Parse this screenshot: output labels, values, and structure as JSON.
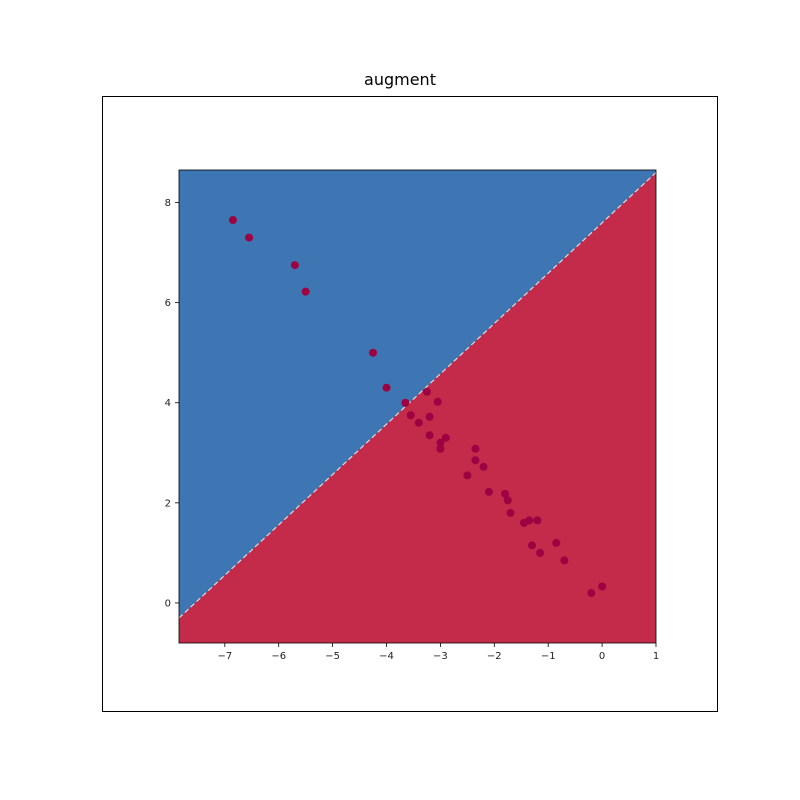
{
  "chart_data": {
    "type": "scatter",
    "title": "augment",
    "xlabel": "",
    "ylabel": "",
    "xlim": [
      -7.85,
      1.0
    ],
    "ylim": [
      -0.8,
      8.65
    ],
    "xticks": [
      -7,
      -6,
      -5,
      -4,
      -3,
      -2,
      -1,
      0,
      1
    ],
    "yticks": [
      0,
      2,
      4,
      6,
      8
    ],
    "xtick_labels": [
      "−7",
      "−6",
      "−5",
      "−4",
      "−3",
      "−2",
      "−1",
      "0",
      "1"
    ],
    "ytick_labels": [
      "0",
      "2",
      "4",
      "6",
      "8"
    ],
    "grid": false,
    "legend": "none",
    "decision_boundary": {
      "x": [
        -7.85,
        1.0
      ],
      "y": [
        -0.3,
        8.6
      ],
      "style": "dashed"
    },
    "regions": [
      {
        "name": "upper-left",
        "color": "#3e76b4"
      },
      {
        "name": "lower-right",
        "color": "#c42b4a"
      }
    ],
    "point_color": "#9e0142",
    "points": {
      "x": [
        -6.85,
        -6.55,
        -5.7,
        -5.5,
        -4.25,
        -4.0,
        -3.65,
        -3.55,
        -3.4,
        -3.2,
        -3.25,
        -3.2,
        -3.05,
        -3.0,
        -3.0,
        -2.9,
        -2.35,
        -2.35,
        -2.2,
        -2.5,
        -2.1,
        -1.8,
        -1.75,
        -1.7,
        -1.45,
        -1.35,
        -1.2,
        -1.3,
        -0.85,
        -1.15,
        -0.7,
        0.0,
        -0.2
      ],
      "y": [
        7.65,
        7.3,
        6.75,
        6.22,
        5.0,
        4.3,
        4.0,
        3.75,
        3.6,
        3.72,
        4.22,
        3.35,
        4.02,
        3.2,
        3.08,
        3.3,
        3.08,
        2.85,
        2.72,
        2.55,
        2.22,
        2.18,
        2.05,
        1.8,
        1.6,
        1.65,
        1.65,
        1.15,
        1.2,
        1.0,
        0.85,
        0.33,
        0.2
      ]
    }
  }
}
